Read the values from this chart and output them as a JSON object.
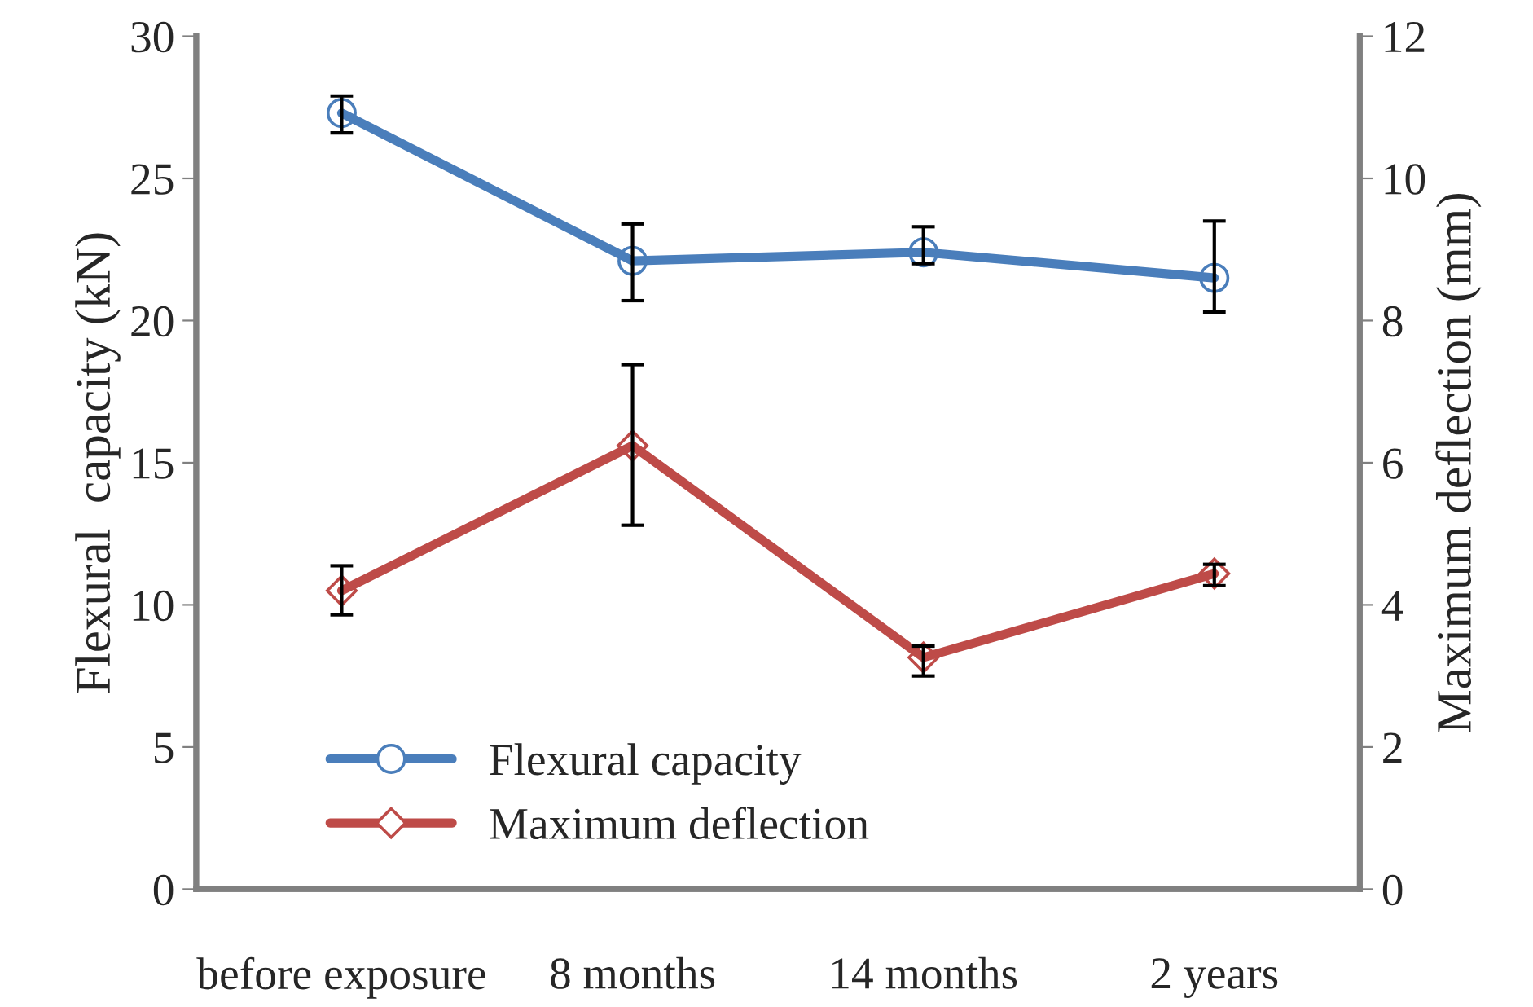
{
  "chart_data": {
    "type": "line",
    "categories": [
      "before exposure",
      "8 months",
      "14 months",
      "2 years"
    ],
    "ylabel": "Flexural  capacity (kN)",
    "y2label": "Maximum deflection (mm)",
    "ylim": [
      0,
      30
    ],
    "yticks": [
      0,
      5,
      10,
      15,
      20,
      25,
      30
    ],
    "y2lim": [
      0,
      12
    ],
    "y2ticks": [
      0,
      2,
      4,
      6,
      8,
      10,
      12
    ],
    "grid": false,
    "legend": "bottom left",
    "series": [
      {
        "name": "Flexural capacity",
        "color": "#4a7ebb",
        "marker": "circle",
        "values": [
          27.3,
          22.1,
          22.4,
          21.5
        ],
        "errors": [
          [
            26.6,
            27.9
          ],
          [
            20.7,
            23.4
          ],
          [
            22.0,
            23.3
          ],
          [
            20.3,
            23.5
          ]
        ]
      },
      {
        "name": "Maximum deflection",
        "color": "#be4b48",
        "marker": "diamond",
        "axis": "y2",
        "values": [
          4.2,
          6.24,
          3.26,
          4.44
        ],
        "errors": [
          [
            3.86,
            4.55
          ],
          [
            5.12,
            7.38
          ],
          [
            3.0,
            3.42
          ],
          [
            4.27,
            4.57
          ]
        ]
      }
    ]
  }
}
